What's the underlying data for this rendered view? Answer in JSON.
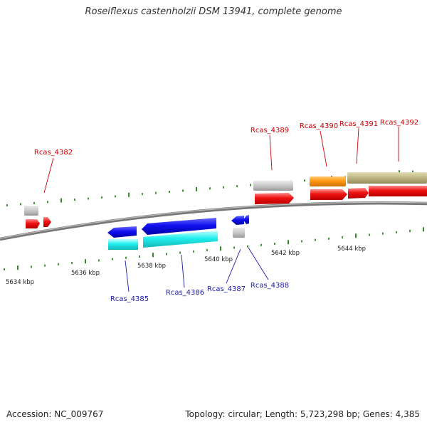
{
  "title": "Roseiflexus castenholzii DSM 13941, complete genome",
  "footer": {
    "accession": "Accession: NC_009767",
    "topology": "Topology: circular; Length: 5,723,298 bp; Genes: 4,385"
  },
  "colors": {
    "backbone": "#8a8a8a",
    "tick": "#2e8b22",
    "fwd_label": "#cc0000",
    "rev_label": "#1a1aa8",
    "cds_red": "#ee1111",
    "cds_blue": "#1010ee",
    "rna_cyan": "#22eeee",
    "grey": "#c8c8c8",
    "orange": "#ff9910",
    "khaki": "#bdb582"
  },
  "scale_labels": [
    {
      "text": "5634 kbp",
      "kbp": 5634
    },
    {
      "text": "5636 kbp",
      "kbp": 5636
    },
    {
      "text": "5638 kbp",
      "kbp": 5638
    },
    {
      "text": "5640 kbp",
      "kbp": 5640
    },
    {
      "text": "5642 kbp",
      "kbp": 5642
    },
    {
      "text": "5644 kbp",
      "kbp": 5644
    }
  ],
  "gene_labels": {
    "forward": [
      "Rcas_4382",
      "Rcas_4389",
      "Rcas_4390",
      "Rcas_4391",
      "Rcas_4392"
    ],
    "reverse": [
      "Rcas_4385",
      "Rcas_4386",
      "Rcas_4387",
      "Rcas_4388"
    ]
  }
}
